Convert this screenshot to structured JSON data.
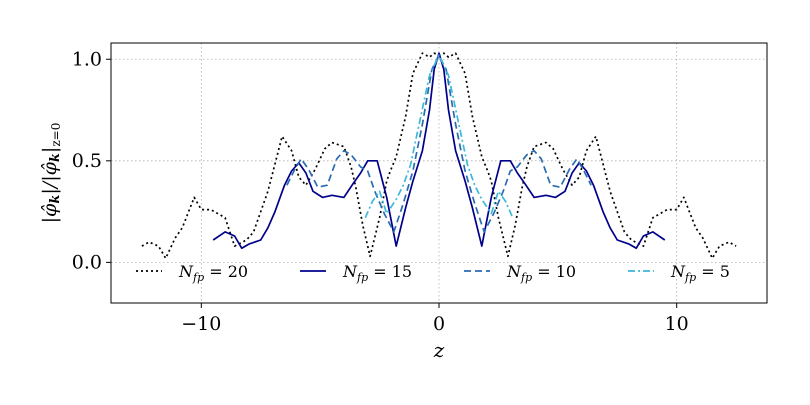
{
  "chart_data": {
    "type": "line",
    "xlabel": "z",
    "ylabel": "|φ̂k|/|φ̂k|z=0",
    "xlim": [
      -13.8,
      13.8
    ],
    "ylim": [
      -0.2,
      1.08
    ],
    "xticks": [
      {
        "value": -10,
        "label": "−10"
      },
      {
        "value": 0,
        "label": "0"
      },
      {
        "value": 10,
        "label": "10"
      }
    ],
    "yticks": [
      {
        "value": 0.0,
        "label": "0.0"
      },
      {
        "value": 0.5,
        "label": "0.5"
      },
      {
        "value": 1.0,
        "label": "1.0"
      }
    ],
    "grid": true,
    "legend_placement": "bottom, single row",
    "series": [
      {
        "name": "N_fp = 20",
        "label_text": "Nfp = 20",
        "color": "#000000",
        "dash": "2,3",
        "x": [
          -12.5,
          -12.2,
          -11.8,
          -11.5,
          -11.1,
          -10.8,
          -10.3,
          -10.0,
          -9.6,
          -9.0,
          -8.6,
          -8.1,
          -7.8,
          -7.2,
          -6.6,
          -6.2,
          -5.9,
          -5.6,
          -5.2,
          -4.8,
          -4.5,
          -4.0,
          -3.7,
          -3.5,
          -3.2,
          -2.9,
          -2.5,
          -2.2,
          -2.05,
          -1.8,
          -1.4,
          -1.1,
          -0.7,
          -0.4,
          -0.2,
          0.0,
          0.2,
          0.4,
          0.7,
          1.1,
          1.4,
          1.8,
          2.05,
          2.2,
          2.5,
          2.9,
          3.2,
          3.5,
          3.7,
          4.0,
          4.5,
          4.8,
          5.2,
          5.6,
          5.9,
          6.2,
          6.6,
          7.2,
          7.8,
          8.1,
          8.6,
          9.0,
          9.6,
          10.0,
          10.3,
          10.8,
          11.1,
          11.5,
          11.8,
          12.2,
          12.5
        ],
        "y": [
          0.08,
          0.1,
          0.08,
          0.02,
          0.12,
          0.17,
          0.32,
          0.26,
          0.26,
          0.22,
          0.08,
          0.11,
          0.15,
          0.35,
          0.62,
          0.55,
          0.42,
          0.38,
          0.46,
          0.56,
          0.59,
          0.57,
          0.47,
          0.37,
          0.18,
          0.03,
          0.22,
          0.4,
          0.45,
          0.52,
          0.72,
          0.93,
          1.03,
          1.01,
          1.03,
          1.02,
          1.03,
          1.01,
          1.03,
          0.93,
          0.72,
          0.52,
          0.45,
          0.4,
          0.22,
          0.03,
          0.18,
          0.37,
          0.47,
          0.57,
          0.59,
          0.56,
          0.46,
          0.38,
          0.42,
          0.55,
          0.62,
          0.35,
          0.15,
          0.11,
          0.08,
          0.22,
          0.26,
          0.26,
          0.32,
          0.17,
          0.12,
          0.02,
          0.08,
          0.1,
          0.08
        ]
      },
      {
        "name": "N_fp = 15",
        "label_text": "Nfp = 15",
        "color": "#00008b",
        "dash": "",
        "x": [
          -9.5,
          -9.0,
          -8.6,
          -8.3,
          -8.0,
          -7.5,
          -7.2,
          -6.9,
          -6.5,
          -6.2,
          -5.9,
          -5.6,
          -5.3,
          -4.9,
          -4.5,
          -4.0,
          -3.6,
          -3.3,
          -3.0,
          -2.6,
          -2.2,
          -1.8,
          -1.4,
          -1.1,
          -0.7,
          -0.4,
          -0.2,
          0.0,
          0.2,
          0.4,
          0.7,
          1.1,
          1.4,
          1.8,
          2.2,
          2.6,
          3.0,
          3.3,
          3.6,
          4.0,
          4.5,
          4.9,
          5.3,
          5.6,
          5.9,
          6.2,
          6.5,
          6.9,
          7.2,
          7.5,
          8.0,
          8.3,
          8.6,
          9.0,
          9.5
        ],
        "y": [
          0.11,
          0.15,
          0.13,
          0.07,
          0.09,
          0.11,
          0.17,
          0.25,
          0.38,
          0.45,
          0.49,
          0.44,
          0.35,
          0.32,
          0.33,
          0.32,
          0.39,
          0.44,
          0.5,
          0.5,
          0.32,
          0.08,
          0.27,
          0.4,
          0.55,
          0.75,
          0.95,
          1.03,
          0.95,
          0.75,
          0.55,
          0.4,
          0.27,
          0.08,
          0.32,
          0.5,
          0.5,
          0.44,
          0.39,
          0.32,
          0.33,
          0.32,
          0.35,
          0.44,
          0.49,
          0.45,
          0.38,
          0.25,
          0.17,
          0.11,
          0.09,
          0.07,
          0.13,
          0.15,
          0.11
        ]
      },
      {
        "name": "N_fp = 10",
        "label_text": "Nfp = 10",
        "color": "#2a6cb0",
        "dash": "7,4",
        "x": [
          -6.4,
          -6.1,
          -5.8,
          -5.5,
          -5.1,
          -4.7,
          -4.3,
          -4.0,
          -3.7,
          -3.3,
          -3.0,
          -2.7,
          -2.3,
          -1.9,
          -1.5,
          -1.1,
          -0.7,
          -0.3,
          0.0,
          0.3,
          0.7,
          1.1,
          1.5,
          1.9,
          2.3,
          2.7,
          3.0,
          3.3,
          3.7,
          4.0,
          4.3,
          4.7,
          5.1,
          5.5,
          5.8,
          6.1,
          6.4
        ],
        "y": [
          0.38,
          0.45,
          0.51,
          0.46,
          0.37,
          0.38,
          0.51,
          0.55,
          0.53,
          0.47,
          0.45,
          0.35,
          0.24,
          0.15,
          0.29,
          0.45,
          0.68,
          0.95,
          1.02,
          0.95,
          0.68,
          0.45,
          0.29,
          0.15,
          0.24,
          0.35,
          0.45,
          0.47,
          0.53,
          0.55,
          0.51,
          0.38,
          0.37,
          0.46,
          0.51,
          0.45,
          0.38
        ]
      },
      {
        "name": "N_fp = 5",
        "label_text": "Nfp = 5",
        "color": "#3cb8d8",
        "dash": "7,3,2,3",
        "x": [
          -3.1,
          -2.8,
          -2.5,
          -2.2,
          -1.8,
          -1.5,
          -1.2,
          -0.8,
          -0.4,
          0.0,
          0.4,
          0.8,
          1.2,
          1.5,
          1.8,
          2.2,
          2.5,
          2.8,
          3.1
        ],
        "y": [
          0.22,
          0.3,
          0.35,
          0.24,
          0.31,
          0.38,
          0.48,
          0.7,
          0.92,
          1.02,
          0.92,
          0.7,
          0.48,
          0.38,
          0.31,
          0.24,
          0.35,
          0.3,
          0.22
        ]
      }
    ]
  }
}
